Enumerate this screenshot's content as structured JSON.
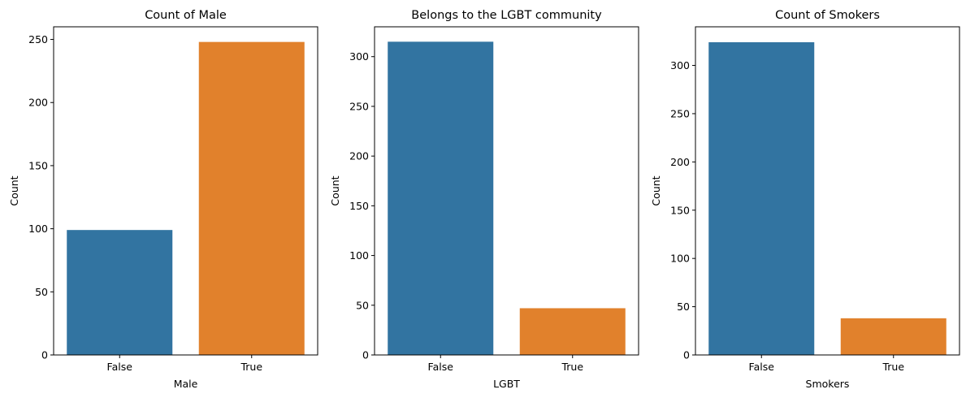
{
  "chart_data": [
    {
      "type": "bar",
      "title": "Count of Male",
      "xlabel": "Male",
      "ylabel": "Count",
      "categories": [
        "False",
        "True"
      ],
      "values": [
        99,
        248
      ],
      "colors": [
        "#3274a1",
        "#e1812c"
      ],
      "ylim": [
        0,
        260
      ],
      "yticks": [
        0,
        50,
        100,
        150,
        200,
        250
      ],
      "grid": false
    },
    {
      "type": "bar",
      "title": "Belongs to the LGBT community",
      "xlabel": "LGBT",
      "ylabel": "Count",
      "categories": [
        "False",
        "True"
      ],
      "values": [
        315,
        47
      ],
      "colors": [
        "#3274a1",
        "#e1812c"
      ],
      "ylim": [
        0,
        330
      ],
      "yticks": [
        0,
        50,
        100,
        150,
        200,
        250,
        300
      ],
      "grid": false
    },
    {
      "type": "bar",
      "title": "Count of Smokers",
      "xlabel": "Smokers",
      "ylabel": "Count",
      "categories": [
        "False",
        "True"
      ],
      "values": [
        324,
        38
      ],
      "colors": [
        "#3274a1",
        "#e1812c"
      ],
      "ylim": [
        0,
        340
      ],
      "yticks": [
        0,
        50,
        100,
        150,
        200,
        250,
        300
      ],
      "grid": false
    }
  ]
}
